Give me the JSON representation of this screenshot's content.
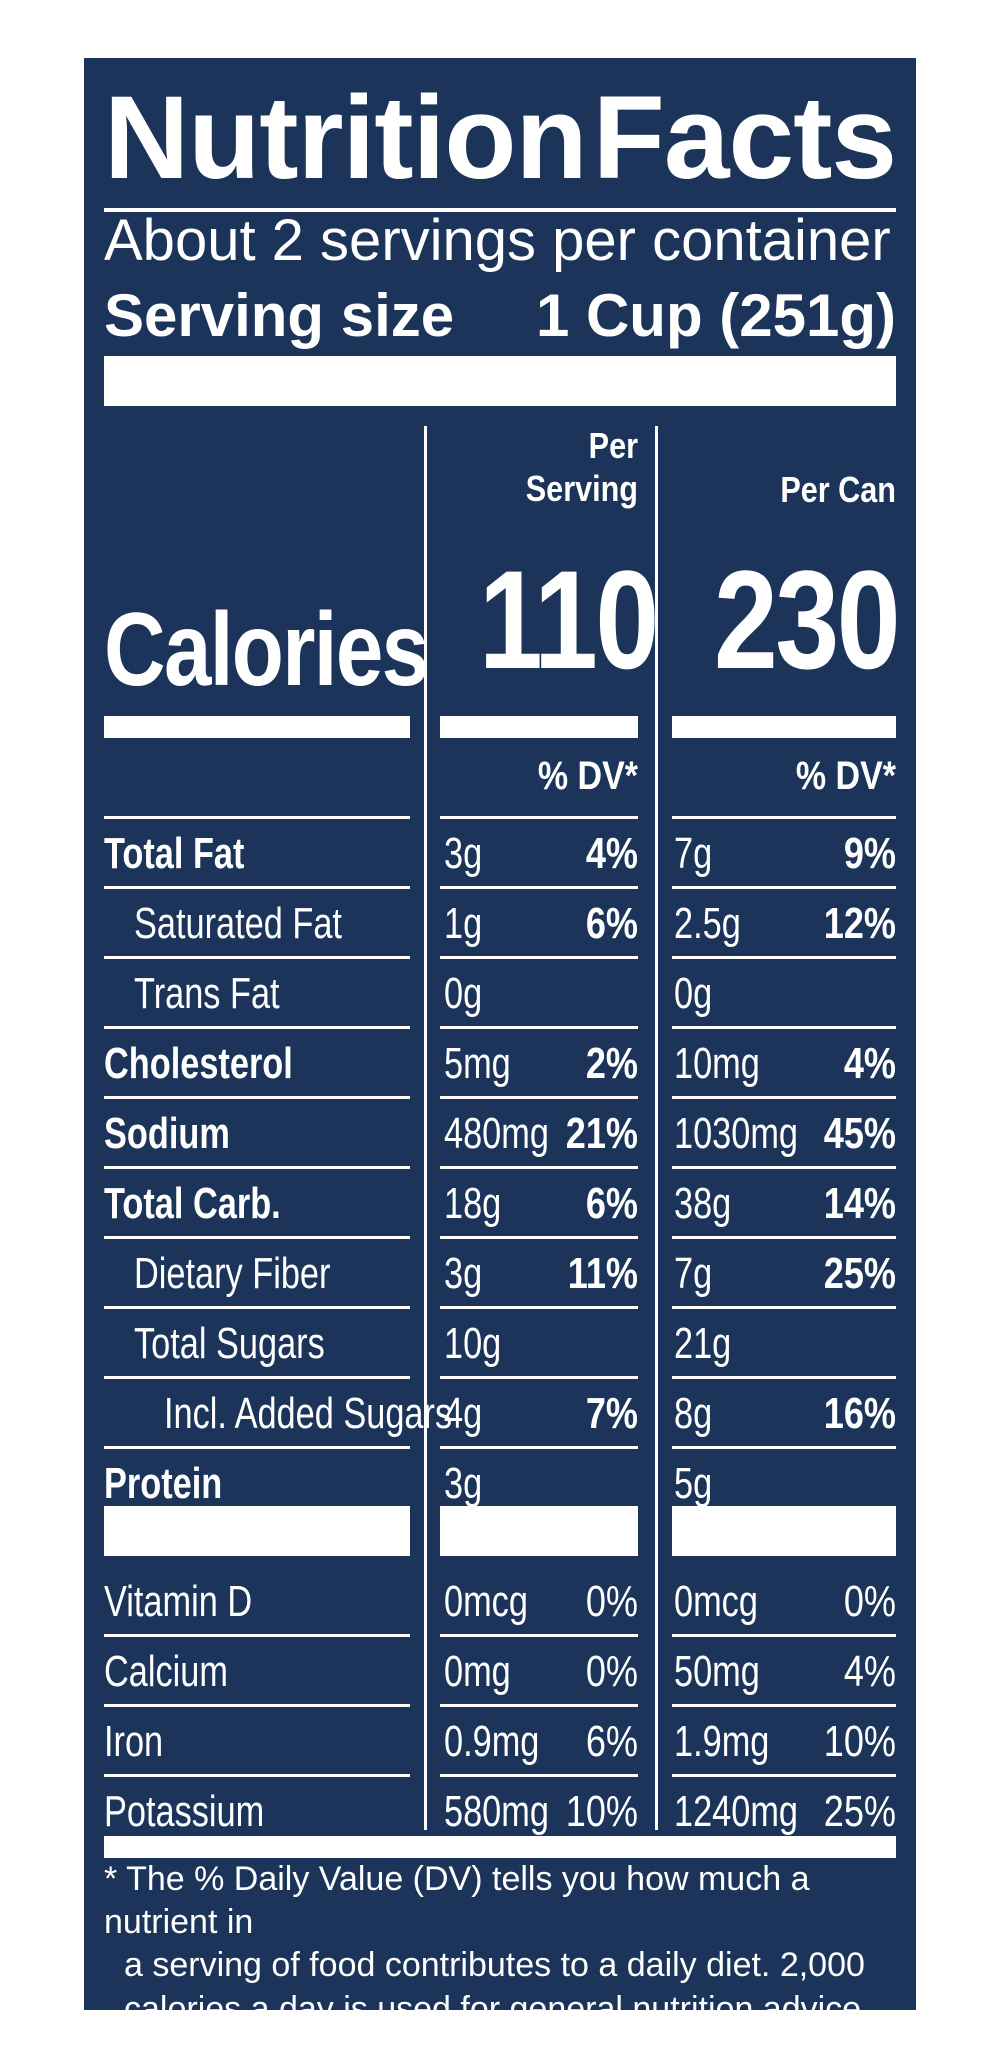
{
  "label": {
    "title_left": "Nutrition",
    "title_right": "Facts",
    "servings_per_container": "About 2 servings per container",
    "serving_size_label": "Serving size",
    "serving_size_value": "1 Cup (251g)",
    "calories_label": "Calories",
    "per_serving_head_1": "Per",
    "per_serving_head_2": "Serving",
    "per_can_head": "Per Can",
    "calories_per_serving": "110",
    "calories_per_can": "230",
    "dv_head_serving": "% DV*",
    "dv_head_can": "% DV*"
  },
  "nutrients": [
    {
      "name": "Total Fat",
      "bold": true,
      "indent": 0,
      "serv_amt": "3g",
      "serv_dv": "4%",
      "can_amt": "7g",
      "can_dv": "9%",
      "dv_bold": true
    },
    {
      "name": "Saturated Fat",
      "bold": false,
      "indent": 1,
      "serv_amt": "1g",
      "serv_dv": "6%",
      "can_amt": "2.5g",
      "can_dv": "12%",
      "dv_bold": true
    },
    {
      "name": "Trans Fat",
      "bold": false,
      "indent": 1,
      "serv_amt": "0g",
      "serv_dv": "",
      "can_amt": "0g",
      "can_dv": "",
      "dv_bold": true
    },
    {
      "name": "Cholesterol",
      "bold": true,
      "indent": 0,
      "serv_amt": "5mg",
      "serv_dv": "2%",
      "can_amt": "10mg",
      "can_dv": "4%",
      "dv_bold": true
    },
    {
      "name": "Sodium",
      "bold": true,
      "indent": 0,
      "serv_amt": "480mg",
      "serv_dv": "21%",
      "can_amt": "1030mg",
      "can_dv": "45%",
      "dv_bold": true
    },
    {
      "name": "Total Carb.",
      "bold": true,
      "indent": 0,
      "serv_amt": "18g",
      "serv_dv": "6%",
      "can_amt": "38g",
      "can_dv": "14%",
      "dv_bold": true
    },
    {
      "name": "Dietary Fiber",
      "bold": false,
      "indent": 1,
      "serv_amt": "3g",
      "serv_dv": "11%",
      "can_amt": "7g",
      "can_dv": "25%",
      "dv_bold": true
    },
    {
      "name": "Total Sugars",
      "bold": false,
      "indent": 1,
      "serv_amt": "10g",
      "serv_dv": "",
      "can_amt": "21g",
      "can_dv": "",
      "dv_bold": true
    },
    {
      "name": "Incl. Added Sugars",
      "bold": false,
      "indent": 2,
      "serv_amt": "4g",
      "serv_dv": "7%",
      "can_amt": "8g",
      "can_dv": "16%",
      "dv_bold": true
    },
    {
      "name": "Protein",
      "bold": true,
      "indent": 0,
      "serv_amt": "3g",
      "serv_dv": "",
      "can_amt": "5g",
      "can_dv": "",
      "dv_bold": true
    }
  ],
  "vitamins": [
    {
      "name": "Vitamin D",
      "serv_amt": "0mcg",
      "serv_dv": "0%",
      "can_amt": "0mcg",
      "can_dv": "0%"
    },
    {
      "name": "Calcium",
      "serv_amt": "0mg",
      "serv_dv": "0%",
      "can_amt": "50mg",
      "can_dv": "4%"
    },
    {
      "name": "Iron",
      "serv_amt": "0.9mg",
      "serv_dv": "6%",
      "can_amt": "1.9mg",
      "can_dv": "10%"
    },
    {
      "name": "Potassium",
      "serv_amt": "580mg",
      "serv_dv": "10%",
      "can_amt": "1240mg",
      "can_dv": "25%"
    }
  ],
  "footnote": {
    "line1": "* The % Daily Value (DV) tells you how much a nutrient in",
    "line2": "a serving of food contributes to a daily diet. 2,000",
    "line3": "calories a day is used for general nutrition advice."
  },
  "colors": {
    "panel_background": "#1c3459",
    "text": "#ffffff"
  }
}
